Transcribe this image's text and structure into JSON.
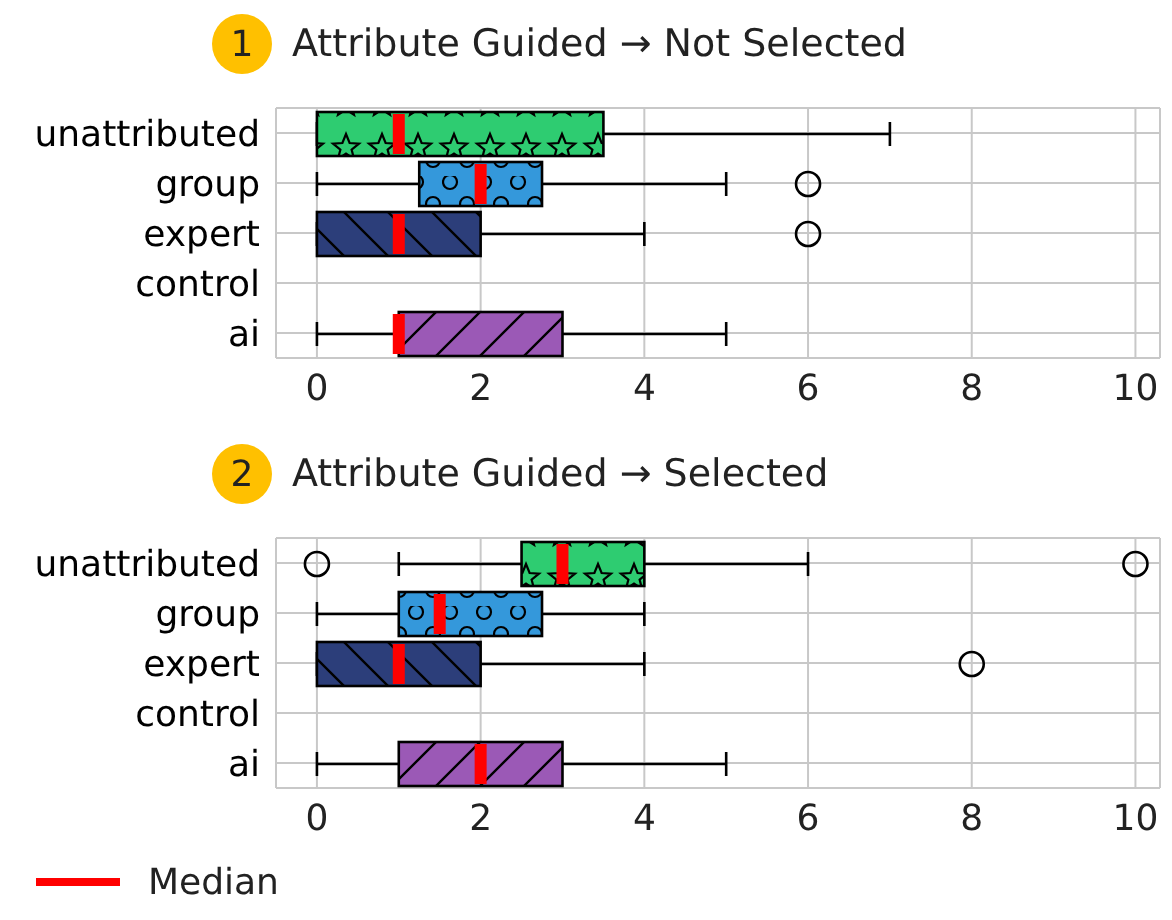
{
  "chart_data": [
    {
      "type": "box",
      "title": "Attribute Guided → Not Selected",
      "annotations": [
        "1"
      ],
      "orientation": "horizontal",
      "categories": [
        "unattributed",
        "group",
        "expert",
        "control",
        "ai"
      ],
      "xlim": [
        -0.5,
        10.3
      ],
      "xticks": [
        0,
        2,
        4,
        6,
        8,
        10
      ],
      "grid": true,
      "legend": false,
      "series": [
        {
          "color": "#ff0000",
          "colors": [
            "#2ecc71",
            "#3498db",
            "#2c3e7a",
            null,
            "#9b59b6"
          ],
          "boxes": [
            {
              "low": 0,
              "q1": 0,
              "median": 1,
              "q3": 3.5,
              "high": 7
            },
            {
              "low": 0,
              "q1": 1.25,
              "median": 2,
              "q3": 2.75,
              "high": 5,
              "outliers": [
                6
              ]
            },
            {
              "low": 0,
              "q1": 0,
              "median": 1,
              "q3": 2,
              "high": 4,
              "outliers": [
                6
              ]
            },
            null,
            {
              "low": 0,
              "q1": 1,
              "median": 1,
              "q3": 3,
              "high": 5
            }
          ]
        }
      ]
    },
    {
      "type": "box",
      "title": "Attribute Guided → Selected",
      "annotations": [
        "2"
      ],
      "orientation": "horizontal",
      "categories": [
        "unattributed",
        "group",
        "expert",
        "control",
        "ai"
      ],
      "xlim": [
        -0.5,
        10.3
      ],
      "xticks": [
        0,
        2,
        4,
        6,
        8,
        10
      ],
      "grid": true,
      "legend": "bottom left",
      "series": [
        {
          "name": "Median",
          "color": "#ff0000",
          "colors": [
            "#2ecc71",
            "#3498db",
            "#2c3e7a",
            null,
            "#9b59b6"
          ],
          "boxes": [
            {
              "low": 1,
              "q1": 2.5,
              "median": 3,
              "q3": 4,
              "high": 6,
              "outliers": [
                0,
                10
              ]
            },
            {
              "low": 0,
              "q1": 1,
              "median": 1.5,
              "q3": 2.75,
              "high": 4
            },
            {
              "low": 0,
              "q1": 0,
              "median": 1,
              "q3": 2,
              "high": 4,
              "outliers": [
                8
              ]
            },
            null,
            {
              "low": 0,
              "q1": 1,
              "median": 2,
              "q3": 3,
              "high": 5
            }
          ]
        }
      ]
    }
  ]
}
